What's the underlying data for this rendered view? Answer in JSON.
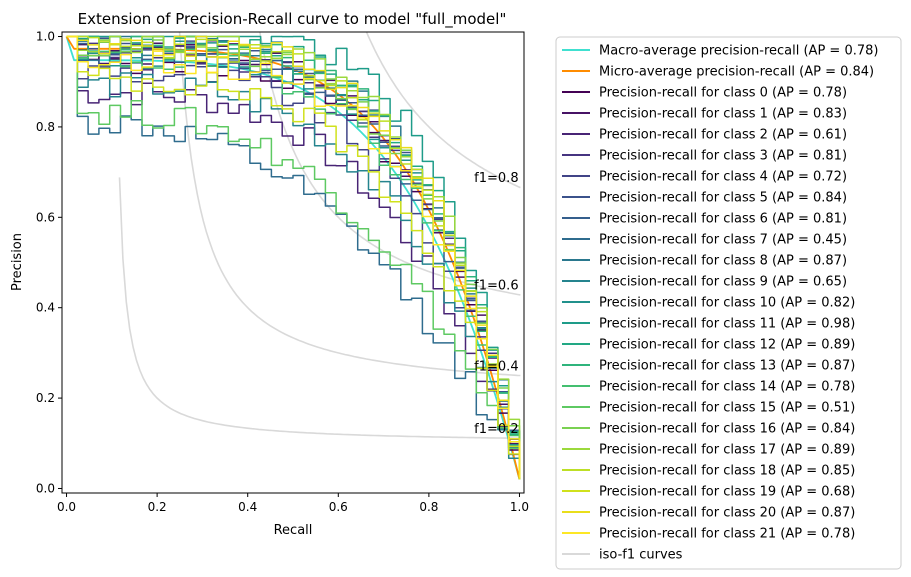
{
  "chart_data": {
    "type": "line",
    "title": "Extension of Precision-Recall curve to model \"full_model\"",
    "xlabel": "Recall",
    "ylabel": "Precision",
    "xlim": [
      -0.01,
      1.01
    ],
    "ylim": [
      -0.01,
      1.01
    ],
    "xticks": [
      0.0,
      0.2,
      0.4,
      0.6,
      0.8,
      1.0
    ],
    "xtick_labels": [
      "0.0",
      "0.2",
      "0.4",
      "0.6",
      "0.8",
      "1.0"
    ],
    "yticks": [
      0.0,
      0.2,
      0.4,
      0.6,
      0.8,
      1.0
    ],
    "ytick_labels": [
      "0.0",
      "0.2",
      "0.4",
      "0.6",
      "0.8",
      "1.0"
    ],
    "grid": false,
    "legend_position": "outside-right",
    "iso_f1": {
      "name": "iso-f1 curves",
      "values": [
        0.2,
        0.4,
        0.6,
        0.8
      ],
      "labels": [
        "f1=0.2",
        "f1=0.4",
        "f1=0.6",
        "f1=0.8"
      ],
      "color": "#d9d9d9"
    },
    "series": [
      {
        "name": "Macro-average precision-recall (AP = 0.78)",
        "color": "#40e0d0",
        "ap": 0.78
      },
      {
        "name": "Micro-average precision-recall (AP = 0.84)",
        "color": "#ff8c00",
        "ap": 0.84
      },
      {
        "name": "Precision-recall for class 0 (AP = 0.78)",
        "color": "#440154",
        "ap": 0.78
      },
      {
        "name": "Precision-recall for class 1 (AP = 0.83)",
        "color": "#471365",
        "ap": 0.83
      },
      {
        "name": "Precision-recall for class 2 (AP = 0.61)",
        "color": "#482475",
        "ap": 0.61
      },
      {
        "name": "Precision-recall for class 3 (AP = 0.81)",
        "color": "#463480",
        "ap": 0.81
      },
      {
        "name": "Precision-recall for class 4 (AP = 0.72)",
        "color": "#414487",
        "ap": 0.72
      },
      {
        "name": "Precision-recall for class 5 (AP = 0.84)",
        "color": "#3b528b",
        "ap": 0.84
      },
      {
        "name": "Precision-recall for class 6 (AP = 0.81)",
        "color": "#355f8d",
        "ap": 0.81
      },
      {
        "name": "Precision-recall for class 7 (AP = 0.45)",
        "color": "#2f6c8e",
        "ap": 0.45
      },
      {
        "name": "Precision-recall for class 8 (AP = 0.87)",
        "color": "#2a788e",
        "ap": 0.87
      },
      {
        "name": "Precision-recall for class 9 (AP = 0.65)",
        "color": "#25848e",
        "ap": 0.65
      },
      {
        "name": "Precision-recall for class 10 (AP = 0.82)",
        "color": "#21918c",
        "ap": 0.82
      },
      {
        "name": "Precision-recall for class 11 (AP = 0.98)",
        "color": "#1e9c89",
        "ap": 0.98
      },
      {
        "name": "Precision-recall for class 12 (AP = 0.89)",
        "color": "#22a884",
        "ap": 0.89
      },
      {
        "name": "Precision-recall for class 13 (AP = 0.87)",
        "color": "#2fb47c",
        "ap": 0.87
      },
      {
        "name": "Precision-recall for class 14 (AP = 0.78)",
        "color": "#44bf70",
        "ap": 0.78
      },
      {
        "name": "Precision-recall for class 15 (AP = 0.51)",
        "color": "#5ec962",
        "ap": 0.51
      },
      {
        "name": "Precision-recall for class 16 (AP = 0.84)",
        "color": "#7ad151",
        "ap": 0.84
      },
      {
        "name": "Precision-recall for class 17 (AP = 0.89)",
        "color": "#9bd93c",
        "ap": 0.89
      },
      {
        "name": "Precision-recall for class 18 (AP = 0.85)",
        "color": "#bddf26",
        "ap": 0.85
      },
      {
        "name": "Precision-recall for class 19 (AP = 0.68)",
        "color": "#d0e11c",
        "ap": 0.68
      },
      {
        "name": "Precision-recall for class 20 (AP = 0.87)",
        "color": "#e9de1b",
        "ap": 0.87
      },
      {
        "name": "Precision-recall for class 21 (AP = 0.78)",
        "color": "#fde725",
        "ap": 0.78
      }
    ]
  }
}
